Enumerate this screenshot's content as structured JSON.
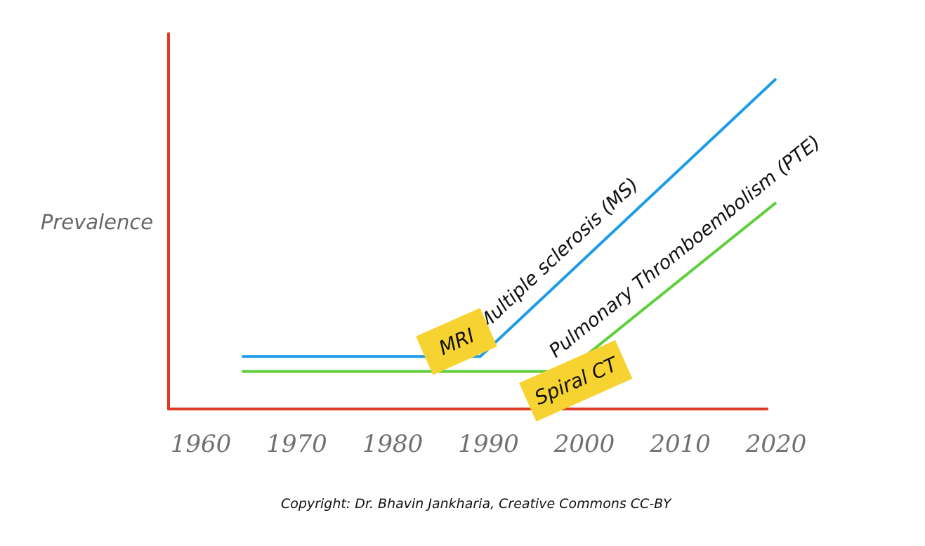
{
  "chart_data": {
    "type": "line",
    "ylabel": "Prevalence",
    "xlabel": "",
    "x_ticks": [
      "1960",
      "1970",
      "1980",
      "1990",
      "2000",
      "2010",
      "2020"
    ],
    "xlim": [
      1960,
      2020
    ],
    "ylim": [
      0,
      10
    ],
    "grid": false,
    "series": [
      {
        "name": "Multiple sclerosis (MS)",
        "color": "#1e9be8",
        "x": [
          1964,
          1989,
          2020
        ],
        "y": [
          1.4,
          1.4,
          8.8
        ]
      },
      {
        "name": "Pulmonary Thromboembolism (PTE)",
        "color": "#5ecf3a",
        "x": [
          1964,
          1998,
          2020
        ],
        "y": [
          1.0,
          1.0,
          5.5
        ]
      }
    ],
    "annotations": [
      {
        "text": "MRI",
        "x": 1986.5,
        "y": 1.8,
        "color": "#f7d332"
      },
      {
        "text": "Spiral CT",
        "x": 1999,
        "y": 0.75,
        "color": "#f7d332"
      }
    ],
    "axis_color": "#e03a26"
  },
  "copyright": "Copyright: Dr. Bhavin Jankharia, Creative Commons CC-BY"
}
